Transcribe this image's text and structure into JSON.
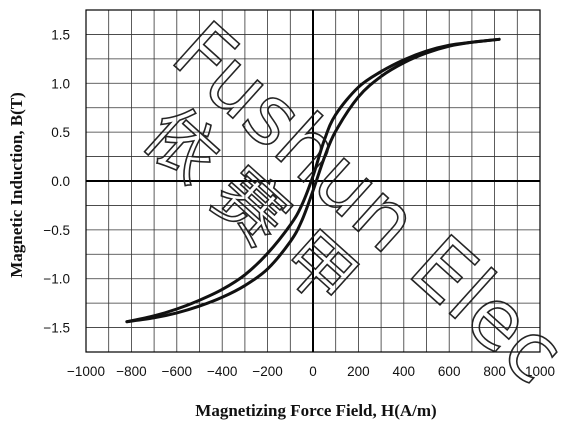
{
  "chart_data": {
    "type": "line",
    "title": "",
    "xlabel": "Magnetizing Force Field, H(A/m)",
    "ylabel": "Magnetic Induction, B(T)",
    "xlim": [
      -1000,
      1000
    ],
    "ylim": [
      -1.75,
      1.75
    ],
    "x_ticks": [
      -1000,
      -800,
      -600,
      -400,
      -200,
      0,
      200,
      400,
      600,
      800,
      1000
    ],
    "x_tick_labels": [
      "−1000",
      "−800",
      "−600",
      "−400",
      "−200",
      "0",
      "200",
      "400",
      "600",
      "800",
      "1000"
    ],
    "y_ticks": [
      -1.5,
      -1.0,
      -0.5,
      0.0,
      0.5,
      1.0,
      1.5
    ],
    "y_tick_labels": [
      "−1.5",
      "−1.0",
      "−0.5",
      "0.0",
      "0.5",
      "1.0",
      "1.5"
    ],
    "grid": true,
    "grid_x_step": 100,
    "grid_y_step": 0.25,
    "legend": "none",
    "series": [
      {
        "points": [
          [
            -820,
            -1.44
          ],
          [
            -700,
            -1.38
          ],
          [
            -600,
            -1.31
          ],
          [
            -500,
            -1.22
          ],
          [
            -400,
            -1.11
          ],
          [
            -300,
            -0.96
          ],
          [
            -200,
            -0.74
          ],
          [
            -100,
            -0.45
          ],
          [
            -50,
            -0.25
          ],
          [
            0,
            0.05
          ],
          [
            50,
            0.42
          ],
          [
            100,
            0.68
          ],
          [
            200,
            0.96
          ],
          [
            300,
            1.12
          ],
          [
            400,
            1.24
          ],
          [
            500,
            1.33
          ],
          [
            600,
            1.39
          ],
          [
            700,
            1.42
          ],
          [
            820,
            1.45
          ]
        ]
      },
      {
        "points": [
          [
            820,
            1.45
          ],
          [
            700,
            1.42
          ],
          [
            600,
            1.38
          ],
          [
            500,
            1.31
          ],
          [
            400,
            1.21
          ],
          [
            300,
            1.07
          ],
          [
            200,
            0.86
          ],
          [
            100,
            0.51
          ],
          [
            50,
            0.24
          ],
          [
            0,
            -0.1
          ],
          [
            -50,
            -0.41
          ],
          [
            -100,
            -0.62
          ],
          [
            -200,
            -0.9
          ],
          [
            -300,
            -1.07
          ],
          [
            -400,
            -1.19
          ],
          [
            -500,
            -1.28
          ],
          [
            -600,
            -1.35
          ],
          [
            -700,
            -1.4
          ],
          [
            -820,
            -1.44
          ]
        ]
      }
    ]
  },
  "watermark": {
    "latin_line": "Fushun Elec",
    "cjk_chars": "依 赛 甲"
  },
  "colors": {
    "curve": "#111111",
    "grid": "#333333",
    "axis": "#000000"
  }
}
